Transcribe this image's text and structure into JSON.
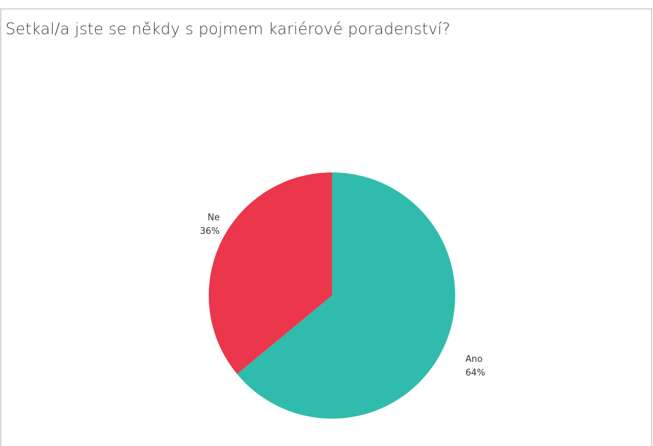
{
  "chart_data": {
    "type": "pie",
    "title": "Setkal/a jste se někdy s pojmem kariérové poradenství?",
    "slices": [
      {
        "label": "Ano",
        "percent_label": "64%",
        "value": 64,
        "color": "#2fbcad"
      },
      {
        "label": "Ne",
        "percent_label": "36%",
        "value": 36,
        "color": "#eb364c"
      }
    ]
  }
}
